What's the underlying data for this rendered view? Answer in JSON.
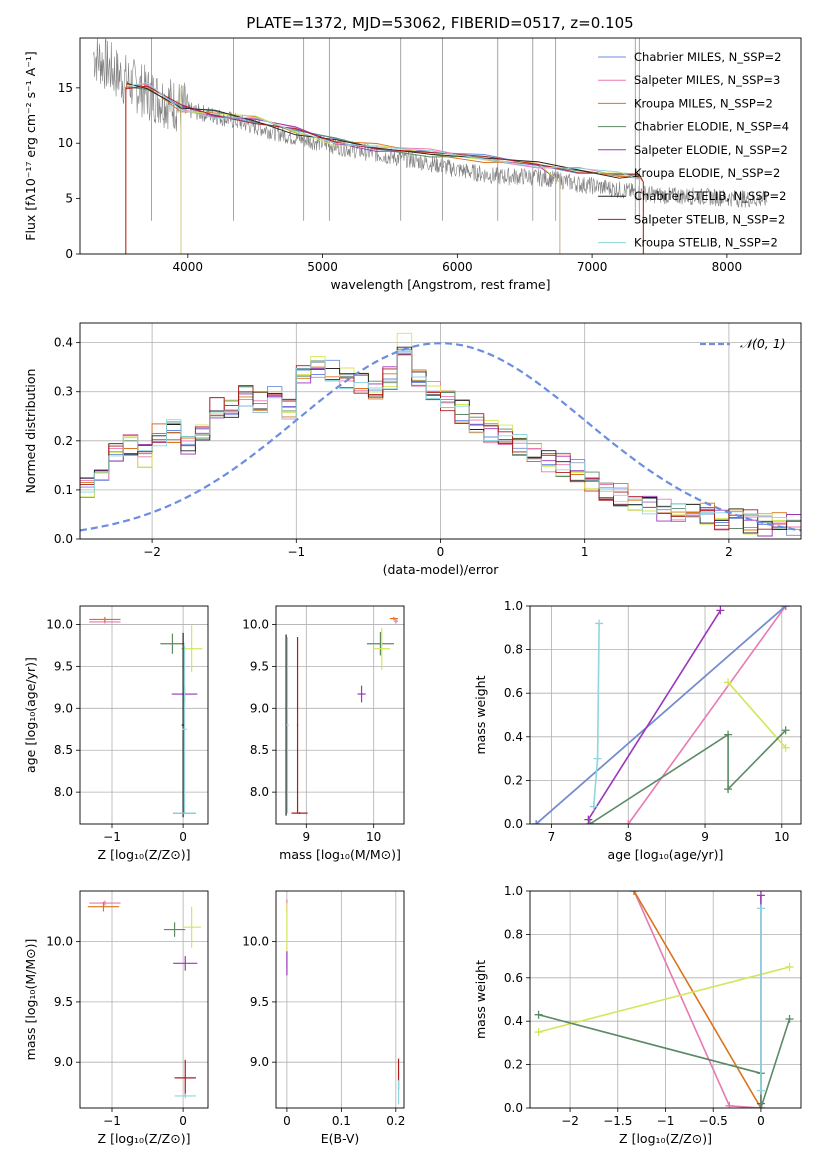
{
  "colors": {
    "chabrier_miles": "#6b8ee0",
    "salpeter_miles": "#e87ab2",
    "kroupa_miles": "#d9741f",
    "chabrier_elodie": "#5b8a65",
    "salpeter_elodie": "#9b35b9",
    "kroupa_elodie": "#d4e65b",
    "chabrier_stelib": "#202020",
    "salpeter_stelib": "#b01c1c",
    "kroupa_stelib": "#8fd6dd",
    "observed": "#808080",
    "normal": "#6b8ee0",
    "grid": "#b0b0b0"
  },
  "chart_data": [
    {
      "id": "spectrum",
      "type": "line",
      "title": "PLATE=1372, MJD=53062, FIBERID=0517, z=0.105",
      "xlabel": "wavelength [Angstrom, rest frame]",
      "ylabel": "Flux [fλ10⁻¹⁷ erg cm⁻² s⁻¹ A⁻¹]",
      "xlim": [
        3200,
        8550
      ],
      "ylim": [
        0,
        19.5
      ],
      "xticks": [
        4000,
        5000,
        6000,
        7000,
        8000
      ],
      "yticks": [
        0,
        5,
        10,
        15
      ],
      "grid": false,
      "legend_position": "top-right",
      "legend": [
        "Chabrier MILES, N_SSP=2",
        "Salpeter MILES, N_SSP=3",
        "Kroupa MILES, N_SSP=2",
        "Chabrier ELODIE, N_SSP=4",
        "Salpeter ELODIE, N_SSP=2",
        "Kroupa ELODIE, N_SSP=2",
        "Chabrier STELIB, N_SSP=2",
        "Salpeter STELIB, N_SSP=2",
        "Kroupa STELIB, N_SSP=2"
      ],
      "observed": {
        "x": [
          3300,
          3500,
          3700,
          3900,
          4000,
          4200,
          4500,
          4800,
          5000,
          5200,
          5500,
          5800,
          6000,
          6300,
          6500,
          6700,
          6900,
          7100,
          7300,
          7500,
          7800,
          8100,
          8300
        ],
        "y": [
          18,
          16,
          14.5,
          13.5,
          13,
          12.5,
          11.5,
          10.5,
          10,
          9.5,
          8.8,
          8.2,
          7.6,
          7.0,
          7.0,
          6.8,
          6.3,
          6.0,
          5.6,
          5.3,
          5.2,
          5.0,
          4.9
        ]
      },
      "model_x": [
        3550,
        3700,
        3950,
        4200,
        4500,
        4800,
        5100,
        5400,
        5800,
        6200,
        6600,
        6900,
        7200,
        7350
      ],
      "model_offsets": [
        0,
        0.2,
        0.4,
        0.1,
        -0.2,
        0.3,
        0.5,
        -0.1,
        0.2,
        0.6,
        0.0,
        -0.3,
        0.4,
        0.1
      ],
      "model_base": [
        15,
        15,
        13,
        12.5,
        12,
        11,
        10,
        9.5,
        9,
        8.5,
        8,
        7.5,
        7,
        6.8
      ],
      "model_cutoffs": {
        "kroupa_miles": [
          3540,
          7380
        ],
        "salpeter_stelib": [
          3540,
          7380
        ],
        "kroupa_elodie": [
          3950,
          6760
        ],
        "salpeter_elodie": [
          3950,
          6760
        ]
      }
    },
    {
      "id": "residuals",
      "type": "histogram",
      "xlabel": "(data-model)/error",
      "ylabel": "Normed distribution",
      "xlim": [
        -2.5,
        2.5
      ],
      "ylim": [
        0,
        0.44
      ],
      "xticks": [
        -2,
        -1,
        0,
        1,
        2
      ],
      "yticks": [
        0.0,
        0.1,
        0.2,
        0.3,
        0.4
      ],
      "grid": true,
      "legend_position": "top-right",
      "legend": [
        "𝒩(0, 1)"
      ],
      "bin_edges": [
        -2.5,
        -2.4,
        -2.3,
        -2.2,
        -2.1,
        -2.0,
        -1.9,
        -1.8,
        -1.7,
        -1.6,
        -1.5,
        -1.4,
        -1.3,
        -1.2,
        -1.1,
        -1.0,
        -0.9,
        -0.8,
        -0.7,
        -0.6,
        -0.5,
        -0.4,
        -0.3,
        -0.2,
        -0.1,
        0.0,
        0.1,
        0.2,
        0.3,
        0.4,
        0.5,
        0.6,
        0.7,
        0.8,
        0.9,
        1.0,
        1.1,
        1.2,
        1.3,
        1.4,
        1.5,
        1.6,
        1.7,
        1.8,
        1.9,
        2.0,
        2.1,
        2.2,
        2.3,
        2.4,
        2.5
      ],
      "base_heights": [
        0.1,
        0.14,
        0.18,
        0.19,
        0.17,
        0.21,
        0.22,
        0.19,
        0.21,
        0.27,
        0.27,
        0.29,
        0.28,
        0.29,
        0.26,
        0.33,
        0.35,
        0.34,
        0.33,
        0.32,
        0.31,
        0.33,
        0.4,
        0.33,
        0.3,
        0.28,
        0.26,
        0.24,
        0.22,
        0.21,
        0.19,
        0.18,
        0.16,
        0.15,
        0.14,
        0.12,
        0.1,
        0.09,
        0.08,
        0.07,
        0.06,
        0.055,
        0.05,
        0.05,
        0.04,
        0.04,
        0.035,
        0.03,
        0.03,
        0.025
      ],
      "normal": {
        "mu": 0,
        "sigma": 1
      }
    },
    {
      "id": "age_vs_Z",
      "type": "errorbar",
      "xlabel": "Z [log₁₀(Z/Z⊙)]",
      "ylabel": "age  [log₁₀(age/yr)]",
      "xlim": [
        -1.45,
        0.35
      ],
      "ylim": [
        7.62,
        10.22
      ],
      "xticks": [
        -1,
        0
      ],
      "yticks": [
        8.0,
        8.5,
        9.0,
        9.5,
        10.0
      ],
      "grid": true,
      "points": [
        {
          "series": "salpeter_miles",
          "x": -1.1,
          "y": 10.03,
          "xerr": 0.22,
          "yerr": 0.02
        },
        {
          "series": "kroupa_miles",
          "x": -1.1,
          "y": 10.06,
          "xerr": 0.22,
          "yerr": 0.03
        },
        {
          "series": "chabrier_elodie",
          "x": -0.15,
          "y": 9.77,
          "xerr": 0.17,
          "yerr": 0.12
        },
        {
          "series": "kroupa_elodie",
          "x": 0.12,
          "y": 9.71,
          "xerr": 0.15,
          "yerr": 0.28
        },
        {
          "series": "salpeter_elodie",
          "x": 0.02,
          "y": 9.17,
          "xerr": 0.18,
          "yerr": 0.1
        },
        {
          "series": "chabrier_stelib",
          "x": 0.0,
          "y": 8.8,
          "xerr": 0.02,
          "yerr": 1.1
        },
        {
          "series": "kroupa_stelib",
          "x": 0.02,
          "y": 8.75,
          "xerr": 0.03,
          "yerr": 1.0
        },
        {
          "series": "salpeter_stelib",
          "x": 0.02,
          "y": 7.75,
          "xerr": 0.16,
          "yerr": 0.01
        },
        {
          "series": "kroupa_stelib",
          "x": 0.02,
          "y": 7.75,
          "xerr": 0.16,
          "yerr": 0.01
        }
      ]
    },
    {
      "id": "age_vs_mass",
      "type": "errorbar",
      "xlabel": "mass [log₁₀(M/M⊙)]",
      "ylabel": "",
      "xlim": [
        8.55,
        10.45
      ],
      "ylim": [
        7.62,
        10.22
      ],
      "xticks": [
        9,
        10
      ],
      "yticks": [
        8.0,
        8.5,
        9.0,
        9.5,
        10.0
      ],
      "grid": true,
      "points": [
        {
          "series": "salpeter_miles",
          "x": 10.33,
          "y": 10.04,
          "xerr": 0.03,
          "yerr": 0.03
        },
        {
          "series": "kroupa_miles",
          "x": 10.3,
          "y": 10.07,
          "xerr": 0.06,
          "yerr": 0.02
        },
        {
          "series": "chabrier_elodie",
          "x": 10.1,
          "y": 9.77,
          "xerr": 0.2,
          "yerr": 0.14
        },
        {
          "series": "kroupa_elodie",
          "x": 10.12,
          "y": 9.71,
          "xerr": 0.12,
          "yerr": 0.25
        },
        {
          "series": "salpeter_elodie",
          "x": 9.82,
          "y": 9.17,
          "xerr": 0.06,
          "yerr": 0.1
        },
        {
          "series": "chabrier_stelib",
          "x": 8.7,
          "y": 8.8,
          "xerr": 0.01,
          "yerr": 1.08
        },
        {
          "series": "kroupa_stelib",
          "x": 8.72,
          "y": 8.8,
          "xerr": 0.02,
          "yerr": 1.05
        },
        {
          "series": "salpeter_stelib",
          "x": 8.87,
          "y": 8.8,
          "xerr": 0.01,
          "yerr": 1.05
        },
        {
          "series": "salpeter_stelib",
          "x": 8.9,
          "y": 7.75,
          "xerr": 0.12,
          "yerr": 0.01
        }
      ]
    },
    {
      "id": "weight_vs_age",
      "type": "line",
      "xlabel": "age  [log₁₀(age/yr)]",
      "ylabel": "mass weight",
      "xlim": [
        6.72,
        10.25
      ],
      "ylim": [
        0,
        1
      ],
      "xticks": [
        7,
        8,
        9,
        10
      ],
      "yticks": [
        0.0,
        0.2,
        0.4,
        0.6,
        0.8,
        1.0
      ],
      "grid": true,
      "series": [
        {
          "name": "salpeter_miles",
          "x": [
            7.5,
            8.0,
            10.05
          ],
          "y": [
            0.0,
            0.0,
            1.0
          ]
        },
        {
          "name": "kroupa_miles",
          "x": [
            6.8,
            10.05
          ],
          "y": [
            0.0,
            1.0
          ]
        },
        {
          "name": "chabrier_miles",
          "x": [
            6.8,
            10.05
          ],
          "y": [
            0.0,
            1.0
          ]
        },
        {
          "name": "salpeter_elodie",
          "x": [
            7.48,
            9.2
          ],
          "y": [
            0.02,
            0.98
          ]
        },
        {
          "name": "kroupa_elodie",
          "x": [
            9.3,
            10.05
          ],
          "y": [
            0.65,
            0.35
          ]
        },
        {
          "name": "chabrier_elodie",
          "x": [
            7.5,
            9.3,
            9.3,
            10.05
          ],
          "y": [
            0.0,
            0.41,
            0.16,
            0.43
          ]
        },
        {
          "name": "kroupa_stelib",
          "x": [
            7.55,
            7.6,
            7.62
          ],
          "y": [
            0.08,
            0.3,
            0.92
          ]
        }
      ]
    },
    {
      "id": "mass_vs_Z",
      "type": "errorbar",
      "xlabel": "Z [log₁₀(Z/Z⊙)]",
      "ylabel": "mass [log₁₀(M/M⊙)]",
      "xlim": [
        -1.45,
        0.35
      ],
      "ylim": [
        8.62,
        10.42
      ],
      "xticks": [
        -1,
        0
      ],
      "yticks": [
        9.0,
        9.5,
        10.0
      ],
      "grid": true,
      "points": [
        {
          "series": "salpeter_miles",
          "x": -1.1,
          "y": 10.32,
          "xerr": 0.22,
          "yerr": 0.02
        },
        {
          "series": "kroupa_miles",
          "x": -1.12,
          "y": 10.29,
          "xerr": 0.22,
          "yerr": 0.04
        },
        {
          "series": "chabrier_elodie",
          "x": -0.12,
          "y": 10.1,
          "xerr": 0.15,
          "yerr": 0.06
        },
        {
          "series": "kroupa_elodie",
          "x": 0.12,
          "y": 10.12,
          "xerr": 0.13,
          "yerr": 0.17
        },
        {
          "series": "salpeter_elodie",
          "x": 0.03,
          "y": 9.82,
          "xerr": 0.17,
          "yerr": 0.06
        },
        {
          "series": "salpeter_stelib",
          "x": 0.03,
          "y": 8.87,
          "xerr": 0.15,
          "yerr": 0.15
        },
        {
          "series": "kroupa_stelib",
          "x": 0.03,
          "y": 8.72,
          "xerr": 0.15,
          "yerr": 0.02
        }
      ]
    },
    {
      "id": "mass_vs_ebv",
      "type": "errorbar",
      "xlabel": "E(B-V)",
      "ylabel": "",
      "xlim": [
        -0.02,
        0.215
      ],
      "ylim": [
        8.62,
        10.42
      ],
      "xticks": [
        0.0,
        0.1,
        0.2
      ],
      "yticks": [
        9.0,
        9.5,
        10.0
      ],
      "grid": true,
      "points": [
        {
          "series": "salpeter_miles",
          "x": 0.0,
          "y": 10.3,
          "xerr": 0.001,
          "yerr": 0.05
        },
        {
          "series": "kroupa_elodie",
          "x": 0.0,
          "y": 10.12,
          "xerr": 0.001,
          "yerr": 0.2
        },
        {
          "series": "salpeter_elodie",
          "x": 0.0,
          "y": 9.82,
          "xerr": 0.001,
          "yerr": 0.1
        },
        {
          "series": "salpeter_stelib",
          "x": 0.205,
          "y": 8.9,
          "xerr": 0.001,
          "yerr": 0.13
        },
        {
          "series": "kroupa_stelib",
          "x": 0.205,
          "y": 8.75,
          "xerr": 0.001,
          "yerr": 0.1
        }
      ]
    },
    {
      "id": "weight_vs_Z",
      "type": "line",
      "xlabel": "Z [log₁₀(Z/Z⊙)]",
      "ylabel": "mass weight",
      "xlim": [
        -2.42,
        0.42
      ],
      "ylim": [
        0,
        1
      ],
      "xticks": [
        -2.0,
        -1.5,
        -1.0,
        -0.5,
        0.0
      ],
      "yticks": [
        0.0,
        0.2,
        0.4,
        0.6,
        0.8,
        1.0
      ],
      "grid": true,
      "series": [
        {
          "name": "salpeter_miles",
          "x": [
            -1.33,
            -0.33,
            0.0
          ],
          "y": [
            1.0,
            0.01,
            0.0
          ]
        },
        {
          "name": "kroupa_miles",
          "x": [
            -1.33,
            0.0
          ],
          "y": [
            1.0,
            0.0
          ]
        },
        {
          "name": "salpeter_elodie",
          "x": [
            0.0,
            0.0
          ],
          "y": [
            0.02,
            0.98
          ]
        },
        {
          "name": "kroupa_elodie",
          "x": [
            -2.33,
            0.3
          ],
          "y": [
            0.35,
            0.65
          ]
        },
        {
          "name": "chabrier_elodie",
          "x": [
            -2.33,
            0.0,
            0.0,
            0.3
          ],
          "y": [
            0.43,
            0.16,
            0.0,
            0.41
          ]
        },
        {
          "name": "kroupa_stelib",
          "x": [
            0.0,
            0.0
          ],
          "y": [
            0.08,
            0.92
          ]
        }
      ]
    }
  ]
}
